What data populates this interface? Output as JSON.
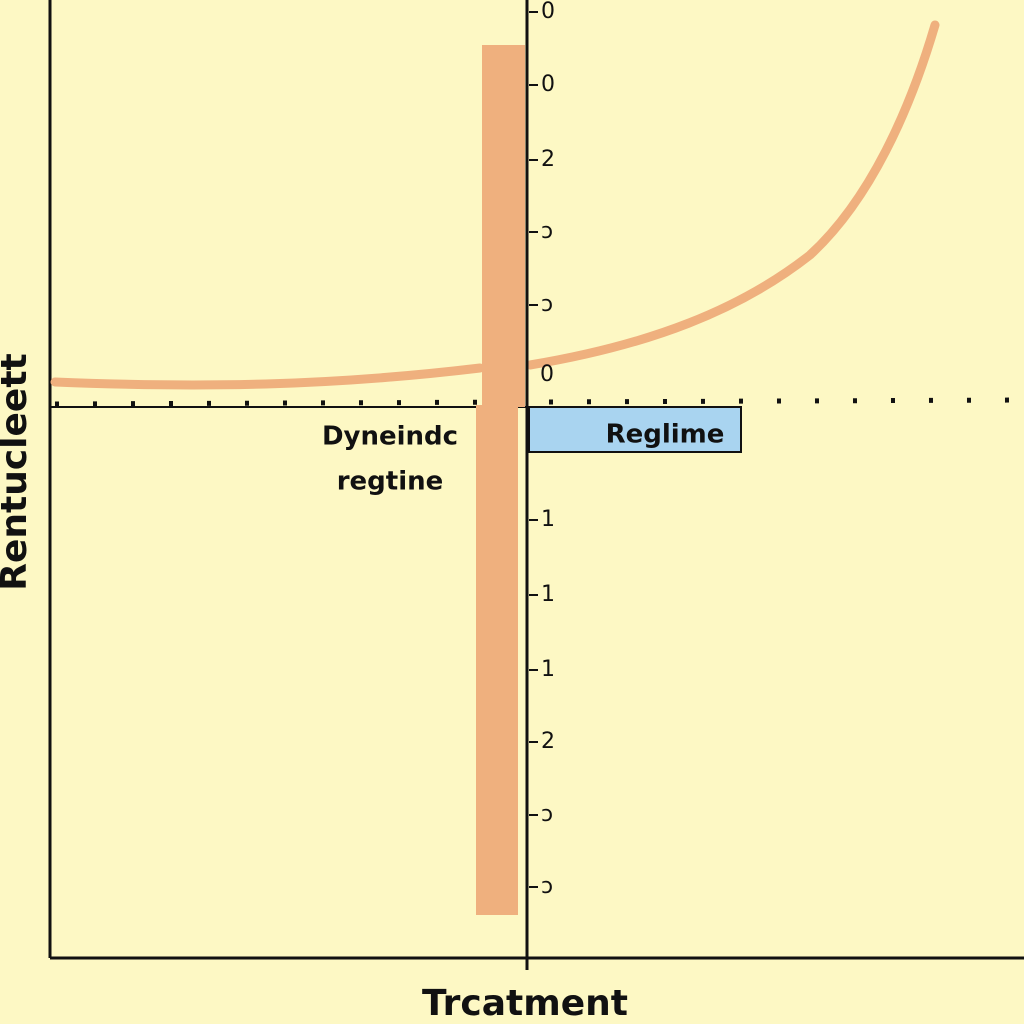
{
  "axes": {
    "y_label": "Rentucleett",
    "x_label": "Trcatment"
  },
  "ticks": [
    "0",
    "0",
    "2",
    "ɔ",
    "ɔ",
    "0",
    "1",
    "1",
    "1",
    "2",
    "ɔ",
    "ɔ"
  ],
  "annotations": {
    "left_region": [
      "Dyneindc",
      "regtine"
    ],
    "right_region": "Reglime"
  }
}
